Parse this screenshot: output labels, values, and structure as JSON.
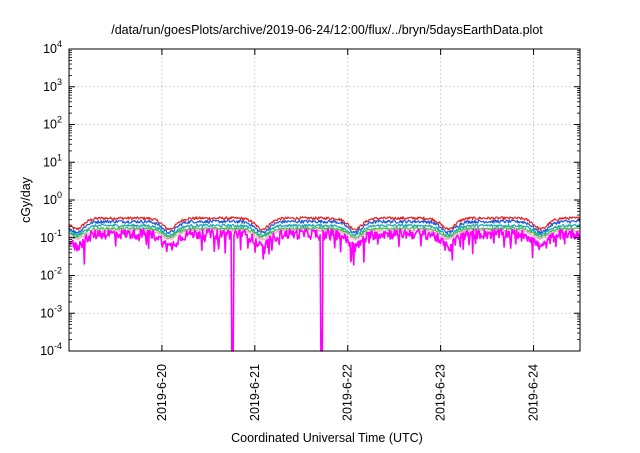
{
  "chart_data": {
    "type": "line",
    "title": "/data/run/goesPlots/archive/2019-06-24/12:00/flux/../bryn/5daysEarthData.plot",
    "xlabel": "Coordinated Universal Time (UTC)",
    "ylabel": "cGy/day",
    "yscale": "log",
    "ylim": [
      0.0001,
      10000
    ],
    "xlim": [
      0,
      5.5
    ],
    "x_unit": "days since 2019-06-19 00:00 UTC",
    "y_ticks": [
      {
        "value": 0.0001,
        "base": "10",
        "exp": "-4"
      },
      {
        "value": 0.001,
        "base": "10",
        "exp": "-3"
      },
      {
        "value": 0.01,
        "base": "10",
        "exp": "-2"
      },
      {
        "value": 0.1,
        "base": "10",
        "exp": "-1"
      },
      {
        "value": 1,
        "base": "10",
        "exp": "0"
      },
      {
        "value": 10,
        "base": "10",
        "exp": "1"
      },
      {
        "value": 100,
        "base": "10",
        "exp": "2"
      },
      {
        "value": 1000,
        "base": "10",
        "exp": "3"
      },
      {
        "value": 10000,
        "base": "10",
        "exp": "4"
      }
    ],
    "x_ticks": [
      {
        "value": 1,
        "label": "2019-6-20"
      },
      {
        "value": 2,
        "label": "2019-6-21"
      },
      {
        "value": 3,
        "label": "2019-6-22"
      },
      {
        "value": 4,
        "label": "2019-6-23"
      },
      {
        "value": 5,
        "label": "2019-6-24"
      }
    ],
    "grid": true,
    "series": [
      {
        "color": "#e8201c",
        "base": 0.33,
        "amp": 0.22,
        "noise": 0.06,
        "spikes": false
      },
      {
        "color": "#1f5bd6",
        "base": 0.27,
        "amp": 0.22,
        "noise": 0.07,
        "spikes": false
      },
      {
        "color": "#1aa8b4",
        "base": 0.21,
        "amp": 0.2,
        "noise": 0.06,
        "spikes": false
      },
      {
        "color": "#3ec43e",
        "base": 0.175,
        "amp": 0.18,
        "noise": 0.05,
        "spikes": false
      },
      {
        "color": "#f2a4c8",
        "base": 0.155,
        "amp": 0.18,
        "noise": 0.05,
        "spikes": false
      },
      {
        "color": "#ff00ff",
        "base": 0.13,
        "amp": 0.25,
        "noise": 0.12,
        "spikes": true
      }
    ],
    "dropouts": [
      1.76,
      2.72
    ]
  }
}
